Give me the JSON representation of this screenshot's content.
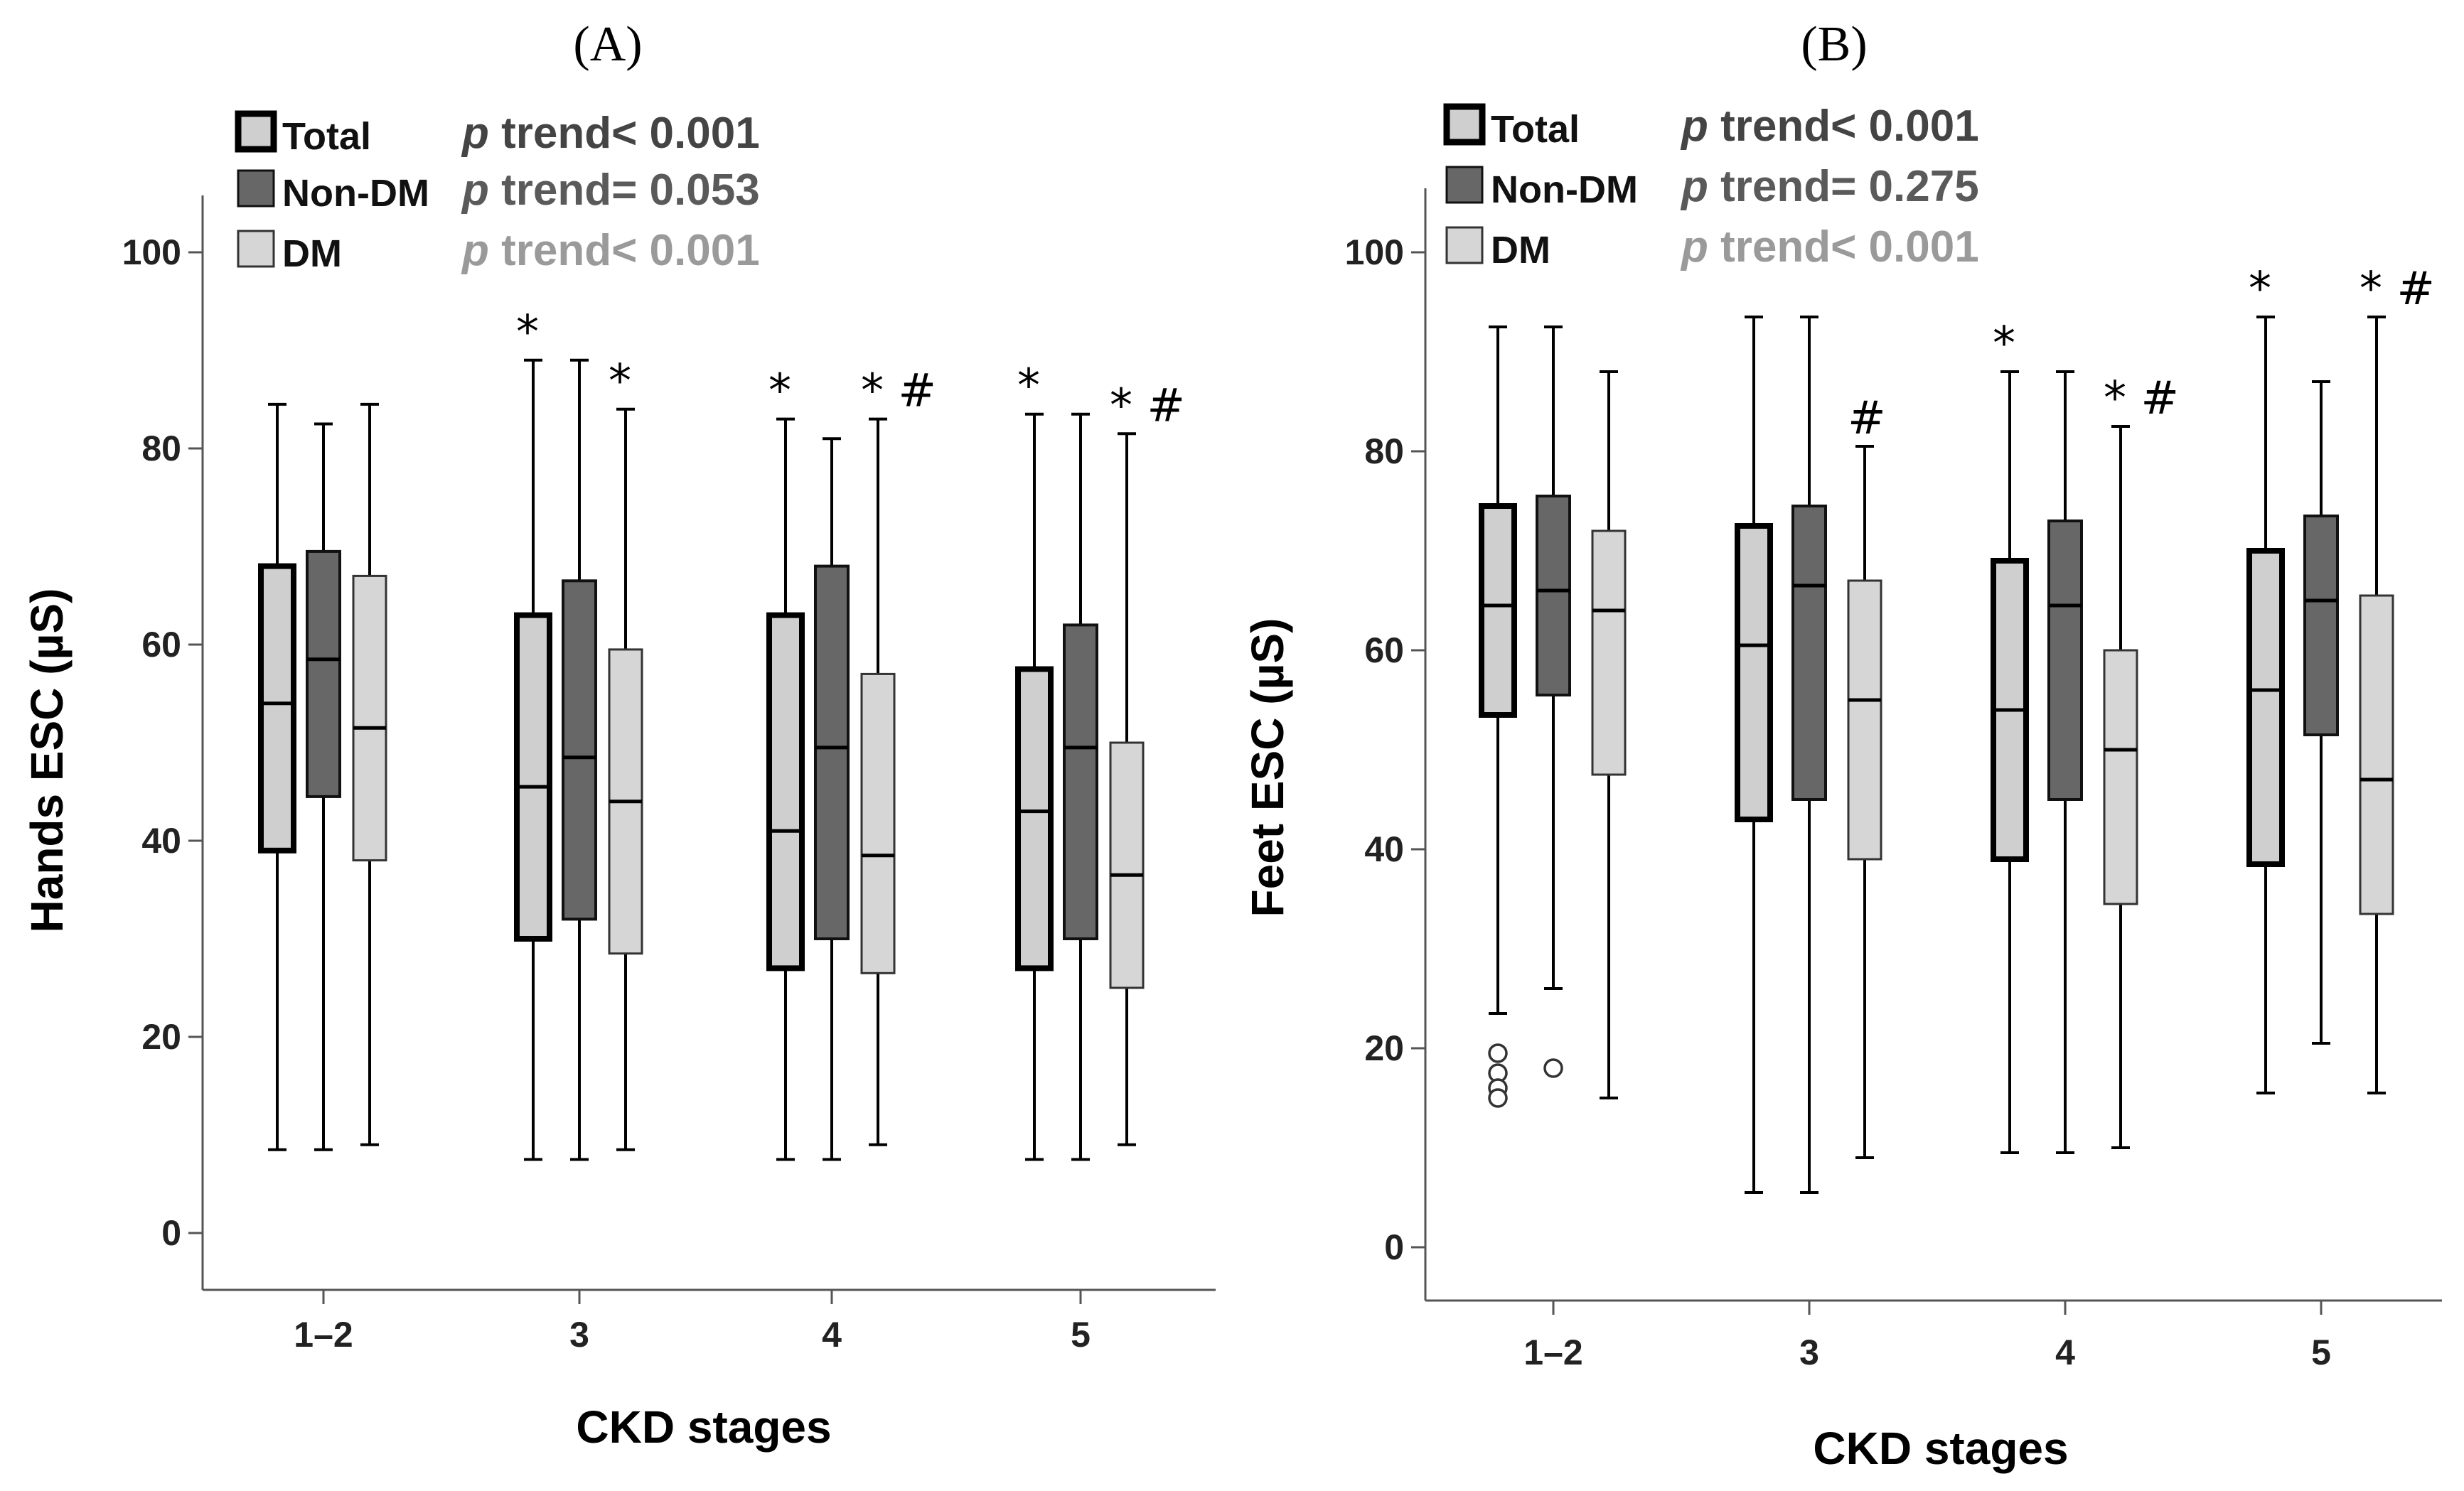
{
  "chart_data": [
    {
      "type": "boxplot",
      "panel_label": "(A)",
      "xlabel": "CKD stages",
      "ylabel": "Hands ESC (µS)",
      "ylim": [
        0,
        100
      ],
      "yticks": [
        0,
        20,
        40,
        60,
        80,
        100
      ],
      "categories": [
        "1–2",
        "3",
        "4",
        "5"
      ],
      "legend": [
        {
          "name": "Total",
          "color": "#cfcfcf",
          "trend_label": "p",
          "trend_text": " trend< 0.001",
          "trend_color": "#444444"
        },
        {
          "name": "Non-DM",
          "color": "#676767",
          "trend_label": "p",
          "trend_text": " trend= 0.053",
          "trend_color": "#5a5a5a"
        },
        {
          "name": "DM",
          "color": "#d6d6d6",
          "trend_label": "p",
          "trend_text": " trend< 0.001",
          "trend_color": "#9a9a9a"
        }
      ],
      "series": [
        {
          "name": "Total",
          "boxes": [
            {
              "min": 8.5,
              "q1": 39,
              "median": 54,
              "q3": 68,
              "max": 84.5,
              "sig": ""
            },
            {
              "min": 7.5,
              "q1": 30,
              "median": 45.5,
              "q3": 63,
              "max": 89,
              "sig": "*"
            },
            {
              "min": 7.5,
              "q1": 27,
              "median": 41,
              "q3": 63,
              "max": 83,
              "sig": "*"
            },
            {
              "min": 7.5,
              "q1": 27,
              "median": 43,
              "q3": 57.5,
              "max": 83.5,
              "sig": "*"
            }
          ]
        },
        {
          "name": "Non-DM",
          "boxes": [
            {
              "min": 8.5,
              "q1": 44.5,
              "median": 58.5,
              "q3": 69.5,
              "max": 82.5,
              "sig": ""
            },
            {
              "min": 7.5,
              "q1": 32,
              "median": 48.5,
              "q3": 66.5,
              "max": 89,
              "sig": ""
            },
            {
              "min": 7.5,
              "q1": 30,
              "median": 49.5,
              "q3": 68,
              "max": 81,
              "sig": ""
            },
            {
              "min": 7.5,
              "q1": 30,
              "median": 49.5,
              "q3": 62,
              "max": 83.5,
              "sig": ""
            }
          ]
        },
        {
          "name": "DM",
          "boxes": [
            {
              "min": 9,
              "q1": 38,
              "median": 51.5,
              "q3": 67,
              "max": 84.5,
              "sig": ""
            },
            {
              "min": 8.5,
              "q1": 28.5,
              "median": 44,
              "q3": 59.5,
              "max": 84,
              "sig": "*"
            },
            {
              "min": 9,
              "q1": 26.5,
              "median": 38.5,
              "q3": 57,
              "max": 83,
              "sig": "* #"
            },
            {
              "min": 9,
              "q1": 25,
              "median": 36.5,
              "q3": 50,
              "max": 81.5,
              "sig": "* #"
            }
          ]
        }
      ],
      "outliers": []
    },
    {
      "type": "boxplot",
      "panel_label": "(B)",
      "xlabel": "CKD stages",
      "ylabel": "Feet ESC (µS)",
      "ylim": [
        0,
        100
      ],
      "yticks": [
        0,
        20,
        40,
        60,
        80,
        100
      ],
      "categories": [
        "1–2",
        "3",
        "4",
        "5"
      ],
      "legend": [
        {
          "name": "Total",
          "color": "#cfcfcf",
          "trend_label": "p",
          "trend_text": " trend< 0.001",
          "trend_color": "#444444"
        },
        {
          "name": "Non-DM",
          "color": "#676767",
          "trend_label": "p",
          "trend_text": " trend= 0.275",
          "trend_color": "#5a5a5a"
        },
        {
          "name": "DM",
          "color": "#d6d6d6",
          "trend_label": "p",
          "trend_text": " trend< 0.001",
          "trend_color": "#9a9a9a"
        }
      ],
      "series": [
        {
          "name": "Total",
          "boxes": [
            {
              "min": 23.5,
              "q1": 53.5,
              "median": 64.5,
              "q3": 74.5,
              "max": 92.5,
              "sig": ""
            },
            {
              "min": 5.5,
              "q1": 43,
              "median": 60.5,
              "q3": 72.5,
              "max": 93.5,
              "sig": ""
            },
            {
              "min": 9.5,
              "q1": 39,
              "median": 54,
              "q3": 69,
              "max": 88,
              "sig": "*"
            },
            {
              "min": 15.5,
              "q1": 38.5,
              "median": 56,
              "q3": 70,
              "max": 93.5,
              "sig": "*"
            }
          ]
        },
        {
          "name": "Non-DM",
          "boxes": [
            {
              "min": 26,
              "q1": 55.5,
              "median": 66,
              "q3": 75.5,
              "max": 92.5,
              "sig": ""
            },
            {
              "min": 5.5,
              "q1": 45,
              "median": 66.5,
              "q3": 74.5,
              "max": 93.5,
              "sig": ""
            },
            {
              "min": 9.5,
              "q1": 45,
              "median": 64.5,
              "q3": 73,
              "max": 88,
              "sig": ""
            },
            {
              "min": 20.5,
              "q1": 51.5,
              "median": 65,
              "q3": 73.5,
              "max": 87,
              "sig": ""
            }
          ]
        },
        {
          "name": "DM",
          "boxes": [
            {
              "min": 15,
              "q1": 47.5,
              "median": 64,
              "q3": 72,
              "max": 88,
              "sig": ""
            },
            {
              "min": 9,
              "q1": 39,
              "median": 55,
              "q3": 67,
              "max": 80.5,
              "sig": "#"
            },
            {
              "min": 10,
              "q1": 34.5,
              "median": 50,
              "q3": 60,
              "max": 82.5,
              "sig": "* #"
            },
            {
              "min": 15.5,
              "q1": 33.5,
              "median": 47,
              "q3": 65.5,
              "max": 93.5,
              "sig": "* #"
            }
          ]
        }
      ],
      "outliers": [
        {
          "series": "Total",
          "category": "1–2",
          "values": [
            19.5,
            17.5,
            16,
            15
          ]
        },
        {
          "series": "Non-DM",
          "category": "1–2",
          "values": [
            18
          ]
        }
      ]
    }
  ]
}
